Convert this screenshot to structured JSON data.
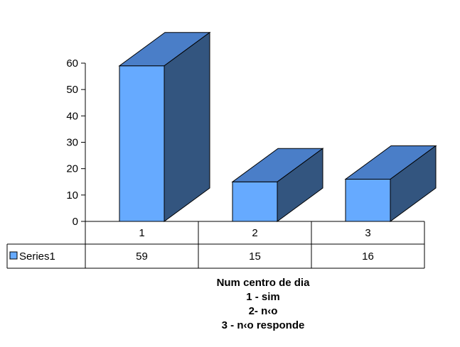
{
  "chart_data": {
    "type": "bar",
    "categories": [
      "1",
      "2",
      "3"
    ],
    "series": [
      {
        "name": "Series1",
        "values": [
          59,
          15,
          16
        ]
      }
    ],
    "ylim": [
      0,
      60
    ],
    "yticks": [
      "0",
      "10",
      "20",
      "30",
      "40",
      "50",
      "60"
    ],
    "legend": "bottom-left (data table)",
    "grid": false,
    "caption_lines": [
      "Num centro de dia",
      "1 - sim",
      "2- n‹o",
      "3 - n‹o responde"
    ],
    "colors": {
      "front": "#66aaff",
      "top": "#4a7ec8",
      "side": "#33557f",
      "outline": "#000000"
    }
  }
}
